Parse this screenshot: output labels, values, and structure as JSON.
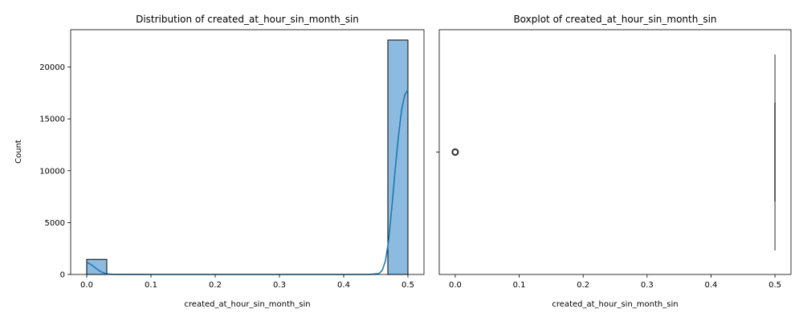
{
  "chart_data": [
    {
      "type": "bar",
      "title": "Distribution of created_at_hour_sin_month_sin",
      "xlabel": "created_at_hour_sin_month_sin",
      "ylabel": "Count",
      "xlim": [
        -0.025,
        0.525
      ],
      "ylim": [
        0,
        23600
      ],
      "xticks": [
        0.0,
        0.1,
        0.2,
        0.3,
        0.4,
        0.5
      ],
      "xtick_labels": [
        "0.0",
        "0.1",
        "0.2",
        "0.3",
        "0.4",
        "0.5"
      ],
      "yticks": [
        0,
        5000,
        10000,
        15000,
        20000
      ],
      "ytick_labels": [
        "0",
        "5000",
        "10000",
        "15000",
        "20000"
      ],
      "bins": [
        {
          "x0": 0.0,
          "x1": 0.03125,
          "count": 1450
        },
        {
          "x0": 0.46875,
          "x1": 0.5,
          "count": 22600
        }
      ],
      "kde": {
        "name": "kde",
        "x": [
          0.0,
          0.005,
          0.01,
          0.015,
          0.02,
          0.025,
          0.03,
          0.035,
          0.04,
          0.05,
          0.1,
          0.2,
          0.3,
          0.4,
          0.44,
          0.455,
          0.46,
          0.465,
          0.47,
          0.475,
          0.48,
          0.485,
          0.49,
          0.495,
          0.5
        ],
        "y": [
          1150,
          1020,
          800,
          560,
          340,
          180,
          85,
          35,
          12,
          2,
          0,
          0,
          0,
          0,
          5,
          80,
          400,
          1300,
          3300,
          6500,
          10000,
          13200,
          15800,
          17300,
          17800
        ]
      },
      "bar_color": "#8dbbdf",
      "line_color": "#1f77b4"
    },
    {
      "type": "box",
      "title": "Boxplot of created_at_hour_sin_month_sin",
      "xlabel": "created_at_hour_sin_month_sin",
      "xlim": [
        -0.025,
        0.525
      ],
      "xticks": [
        0.0,
        0.1,
        0.2,
        0.3,
        0.4,
        0.5
      ],
      "xtick_labels": [
        "0.0",
        "0.1",
        "0.2",
        "0.3",
        "0.4",
        "0.5"
      ],
      "box": {
        "q1": 0.5,
        "median": 0.5,
        "q3": 0.5,
        "whisker_low": 0.5,
        "whisker_high": 0.5
      },
      "outliers": [
        0.0
      ]
    }
  ]
}
